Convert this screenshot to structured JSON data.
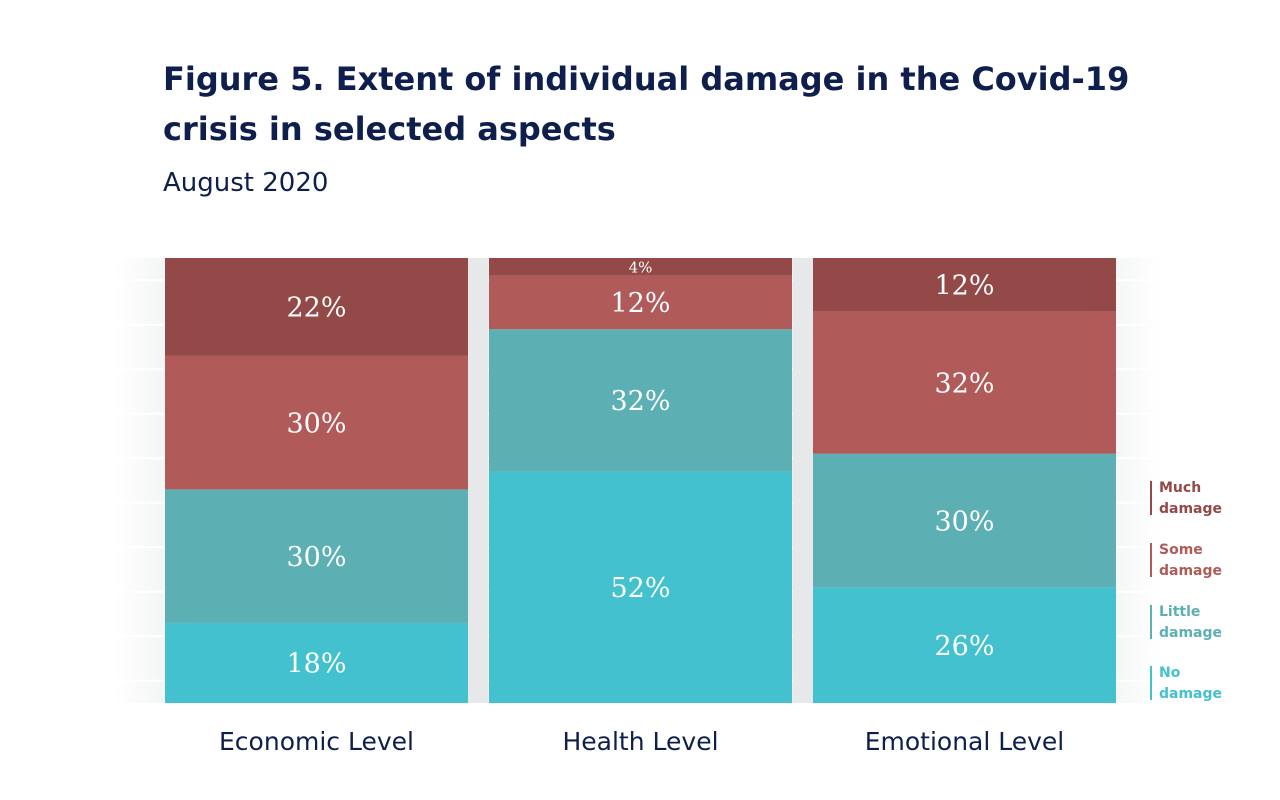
{
  "chart_data": {
    "type": "bar",
    "stacked": true,
    "normalized": true,
    "title": "Figure 5. Extent of individual damage in the Covid-19 crisis in selected aspects",
    "subtitle": "August 2020",
    "categories": [
      "Economic Level",
      "Health Level",
      "Emotional Level"
    ],
    "series": [
      {
        "name": "No damage",
        "color": "#43c1cf",
        "values": [
          18,
          52,
          26
        ]
      },
      {
        "name": "Little damage",
        "color": "#5cb0b3",
        "values": [
          30,
          32,
          30
        ]
      },
      {
        "name": "Some damage",
        "color": "#b05a59",
        "values": [
          30,
          12,
          32
        ]
      },
      {
        "name": "Much damage",
        "color": "#934947",
        "values": [
          22,
          4,
          12
        ]
      }
    ],
    "value_suffix": "%",
    "ylim": [
      0,
      100
    ],
    "legend_position": "right",
    "legend": [
      {
        "line1": "Much",
        "line2": "damage",
        "color": "#934947"
      },
      {
        "line1": "Some",
        "line2": "damage",
        "color": "#b05a59"
      },
      {
        "line1": "Little",
        "line2": "damage",
        "color": "#5cb0b3"
      },
      {
        "line1": "No",
        "line2": "damage",
        "color": "#43c1cf"
      }
    ]
  }
}
